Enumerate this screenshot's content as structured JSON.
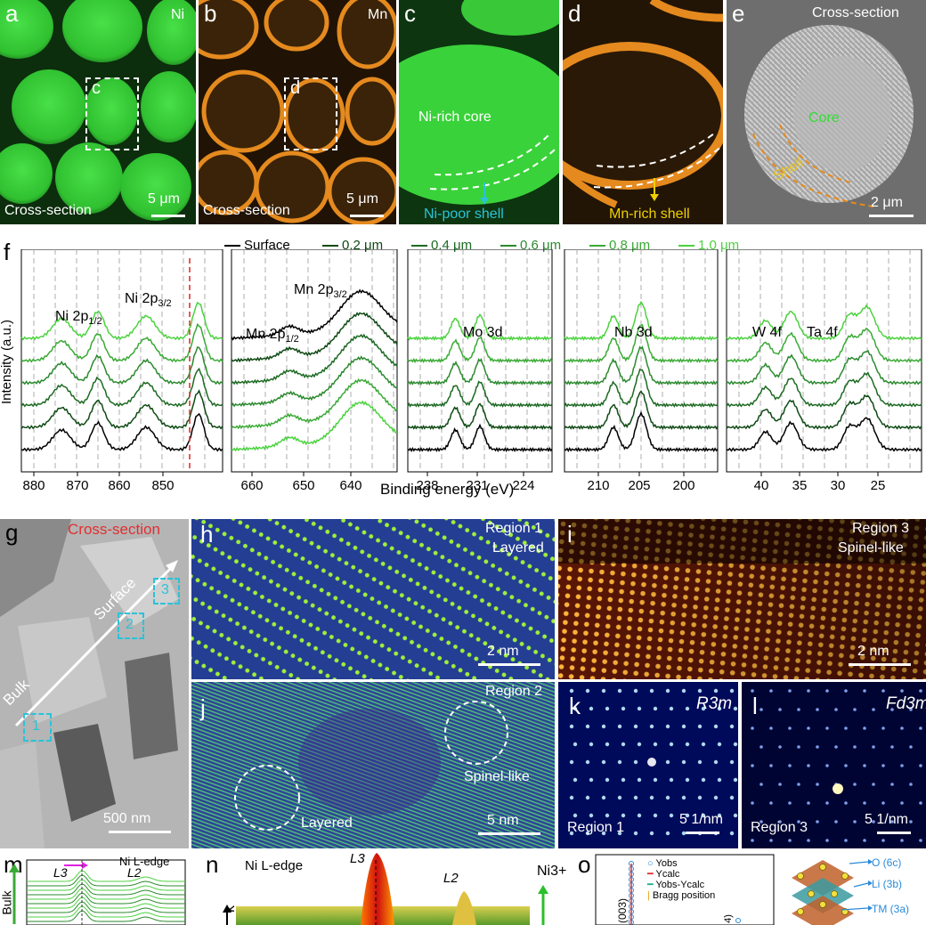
{
  "panels": {
    "a": {
      "letter": "a",
      "element": "Ni",
      "caption": "Cross-section",
      "inset": "c",
      "scale": "5 μm"
    },
    "b": {
      "letter": "b",
      "element": "Mn",
      "caption": "Cross-section",
      "inset": "d",
      "scale": "5 μm"
    },
    "c": {
      "letter": "c",
      "core": "Ni-rich core",
      "shell": "Ni-poor shell"
    },
    "d": {
      "letter": "d",
      "shell": "Mn-rich shell"
    },
    "e": {
      "letter": "e",
      "title": "Cross-section",
      "core": "Core",
      "shell": "Shell",
      "scale": "2 μm"
    },
    "f": {
      "letter": "f",
      "legend": [
        "Surface",
        "0.2 μm",
        "0.4 μm",
        "0.6 μm",
        "0.8 μm",
        "1.0 μm"
      ],
      "ylabel": "Intensity (a.u.)",
      "xlabel": "Binding energy (eV)",
      "regions": [
        {
          "labels": [
            "Ni 2p1/2",
            "Ni 2p3/2"
          ],
          "ticks": [
            "880",
            "870",
            "860",
            "850"
          ]
        },
        {
          "labels": [
            "Mn 2p1/2",
            "Mn 2p3/2"
          ],
          "ticks": [
            "660",
            "650",
            "640"
          ]
        },
        {
          "labels": [
            "Mo 3d"
          ],
          "ticks": [
            "238",
            "231",
            "224"
          ]
        },
        {
          "labels": [
            "Nb 3d"
          ],
          "ticks": [
            "210",
            "205",
            "200"
          ]
        },
        {
          "labels": [
            "W 4f",
            "Ta 4f"
          ],
          "ticks": [
            "40",
            "35",
            "30",
            "25"
          ]
        }
      ]
    },
    "g": {
      "letter": "g",
      "title": "Cross-section",
      "surface": "Surface",
      "bulk": "Bulk",
      "boxes": [
        "1",
        "2",
        "3"
      ],
      "scale": "500 nm"
    },
    "h": {
      "letter": "h",
      "region": "Region 1",
      "kind": "Layered",
      "scale": "2 nm"
    },
    "i": {
      "letter": "i",
      "region": "Region 3",
      "kind": "Spinel-like",
      "scale": "2 nm"
    },
    "j": {
      "letter": "j",
      "region": "Region 2",
      "spinel": "Spinel-like",
      "layered": "Layered",
      "scale": "5 nm"
    },
    "k": {
      "letter": "k",
      "group": "R3m",
      "region": "Region 1",
      "scale": "5 1/nm"
    },
    "l": {
      "letter": "l",
      "group": "Fd3m",
      "region": "Region 3",
      "scale": "5 1/nm"
    },
    "m": {
      "letter": "m",
      "title": "Ni L-edge",
      "l3": "L3",
      "l2": "L2",
      "bulk": "Bulk"
    },
    "n": {
      "letter": "n",
      "title": "Ni L-edge",
      "l3": "L3",
      "l2": "L2",
      "ni3": "Ni3+",
      "bulk": "k"
    },
    "o": {
      "letter": "o",
      "legend": [
        "Yobs",
        "Ycalc",
        "Yobs-Ycalc",
        "Bragg position"
      ],
      "peak": "(003)",
      "peak2": "4)",
      "sites": [
        "O (6c)",
        "Li (3b)",
        "TM (3a)"
      ]
    }
  },
  "colors": {
    "ni_green": "#2ec63a",
    "mn_orange": "#e58a1e",
    "spectra": [
      "#000000",
      "#0f4a14",
      "#1c6a22",
      "#2b8a2e",
      "#3aaa35",
      "#4cd23f"
    ],
    "red_dash": "#e03030",
    "cyan": "#2ac3d8",
    "core_green": "#33dd33",
    "shell_orange": "#e68a1a"
  }
}
